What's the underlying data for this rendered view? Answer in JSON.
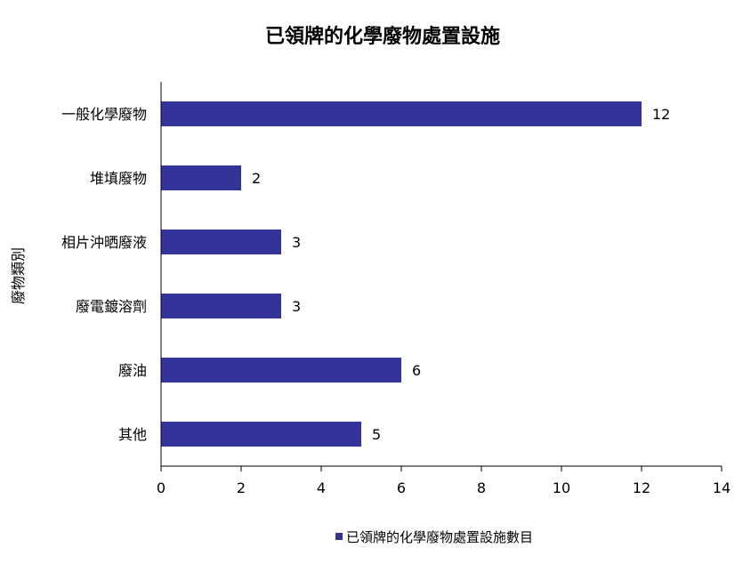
{
  "chart_data": {
    "type": "bar",
    "orientation": "horizontal",
    "title": "已領牌的化學廢物處置設施",
    "ylabel": "廢物類別",
    "xlabel": "",
    "categories": [
      "一般化學廢物",
      "堆填廢物",
      "相片沖晒廢液",
      "廢電鍍溶劑",
      "廢油",
      "其他"
    ],
    "series": [
      {
        "name": "已領牌的化學廢物處置設施數目",
        "values": [
          12,
          2,
          3,
          3,
          6,
          5
        ],
        "color": "#333399"
      }
    ],
    "xlim": [
      0,
      14
    ],
    "xticks": [
      0,
      2,
      4,
      6,
      8,
      10,
      12,
      14
    ],
    "grid": false,
    "legend": "bottom"
  }
}
